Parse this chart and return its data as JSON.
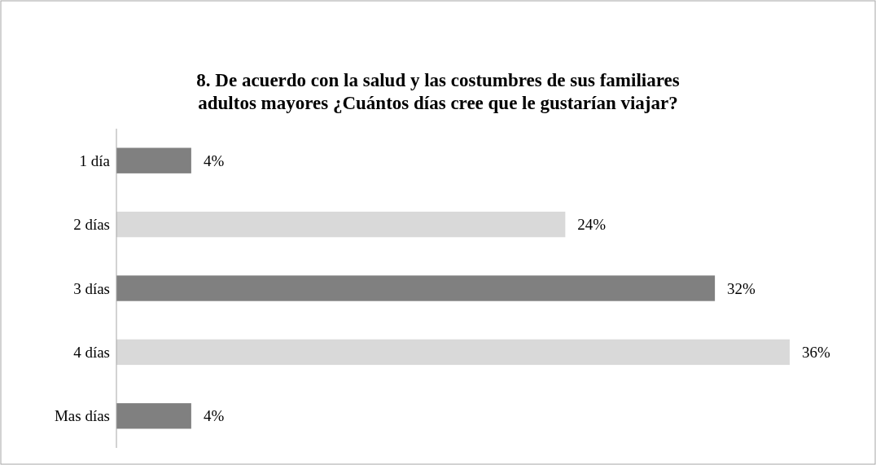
{
  "chart_data": {
    "type": "bar",
    "orientation": "horizontal",
    "title": "8. De acuerdo con la salud y las costumbres de sus familiares adultos mayores ¿Cuántos días cree que le gustarían viajar?",
    "categories": [
      "1 día",
      "2 días",
      "3 días",
      "4 días",
      "Mas días"
    ],
    "values": [
      4,
      24,
      32,
      36,
      4
    ],
    "colors": [
      "#808080",
      "#d9d9d9",
      "#808080",
      "#d9d9d9",
      "#808080"
    ],
    "value_labels": [
      "4%",
      "24%",
      "32%",
      "36%",
      "4%"
    ]
  }
}
